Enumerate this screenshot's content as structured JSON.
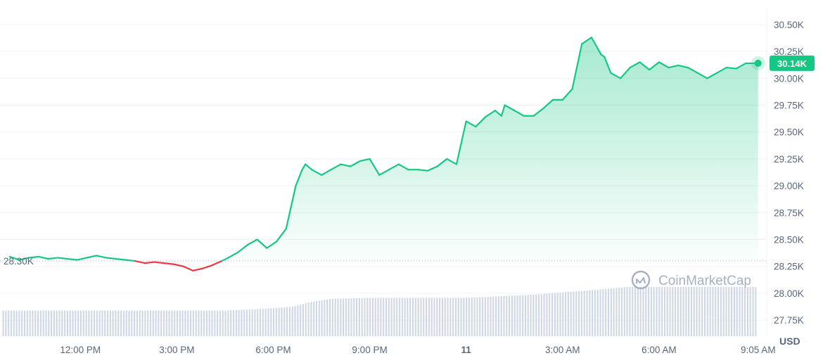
{
  "chart_data": {
    "type": "area",
    "currency_unit": "USD",
    "reference_price_label": "28.30K",
    "reference_price": 28300,
    "current_price_label": "30.14K",
    "current_price": 30140,
    "watermark": "CoinMarketCap",
    "ylim": [
      27600,
      30650
    ],
    "y_ticks": [
      {
        "value": 27750,
        "label": "27.75K"
      },
      {
        "value": 28000,
        "label": "28.00K"
      },
      {
        "value": 28250,
        "label": "28.25K"
      },
      {
        "value": 28500,
        "label": "28.50K"
      },
      {
        "value": 28750,
        "label": "28.75K"
      },
      {
        "value": 29000,
        "label": "29.00K"
      },
      {
        "value": 29250,
        "label": "29.25K"
      },
      {
        "value": 29500,
        "label": "29.50K"
      },
      {
        "value": 29750,
        "label": "29.75K"
      },
      {
        "value": 30000,
        "label": "30.00K"
      },
      {
        "value": 30250,
        "label": "30.25K"
      },
      {
        "value": 30500,
        "label": "30.50K"
      }
    ],
    "xlim": [
      9.5,
      33.35
    ],
    "x_ticks": [
      {
        "hour": 12,
        "label": "12:00 PM",
        "bold": false
      },
      {
        "hour": 15,
        "label": "3:00 PM",
        "bold": false
      },
      {
        "hour": 18,
        "label": "6:00 PM",
        "bold": false
      },
      {
        "hour": 21,
        "label": "9:00 PM",
        "bold": false
      },
      {
        "hour": 24,
        "label": "11",
        "bold": true
      },
      {
        "hour": 27,
        "label": "3:00 AM",
        "bold": false
      },
      {
        "hour": 30,
        "label": "6:00 AM",
        "bold": false
      },
      {
        "hour": 33.083,
        "label": "9:05 AM",
        "bold": false
      }
    ],
    "colors": {
      "up": "#16c784",
      "down": "#ea3943",
      "volume": "#cfd6e4"
    },
    "price": {
      "hours": [
        9.8,
        10.1,
        10.4,
        10.7,
        11.0,
        11.3,
        11.6,
        11.9,
        12.2,
        12.5,
        12.8,
        13.1,
        13.4,
        13.7,
        14.0,
        14.3,
        14.6,
        14.9,
        15.2,
        15.5,
        15.8,
        16.1,
        16.4,
        16.6,
        16.9,
        17.2,
        17.5,
        17.8,
        18.1,
        18.4,
        18.7,
        18.9,
        19.0,
        19.2,
        19.5,
        19.8,
        20.1,
        20.4,
        20.7,
        21.0,
        21.3,
        21.6,
        21.9,
        22.2,
        22.5,
        22.8,
        23.1,
        23.4,
        23.7,
        24.0,
        24.3,
        24.6,
        24.9,
        25.1,
        25.2,
        25.5,
        25.8,
        26.1,
        26.4,
        26.7,
        27.0,
        27.3,
        27.6,
        27.9,
        28.2,
        28.3,
        28.5,
        28.8,
        29.1,
        29.4,
        29.7,
        30.0,
        30.3,
        30.6,
        30.9,
        31.2,
        31.5,
        31.8,
        32.1,
        32.4,
        32.7,
        33.0,
        33.08
      ],
      "values": [
        28340,
        28310,
        28330,
        28340,
        28320,
        28330,
        28320,
        28310,
        28330,
        28350,
        28330,
        28320,
        28310,
        28300,
        28280,
        28290,
        28280,
        28270,
        28250,
        28210,
        28230,
        28260,
        28300,
        28330,
        28380,
        28450,
        28500,
        28420,
        28480,
        28600,
        29000,
        29150,
        29200,
        29150,
        29100,
        29150,
        29200,
        29180,
        29230,
        29250,
        29100,
        29150,
        29200,
        29150,
        29150,
        29140,
        29180,
        29250,
        29200,
        29600,
        29550,
        29640,
        29700,
        29650,
        29750,
        29700,
        29650,
        29650,
        29720,
        29800,
        29800,
        29900,
        30320,
        30380,
        30220,
        30200,
        30050,
        30000,
        30100,
        30150,
        30080,
        30150,
        30100,
        30120,
        30100,
        30050,
        30000,
        30050,
        30100,
        30090,
        30140,
        30140,
        30140
      ]
    },
    "volume": {
      "start_hour": 9.6,
      "end_hour": 33.08,
      "step_hours": 0.0833,
      "relative_levels": [
        {
          "hour": 9.6,
          "level": 0.52
        },
        {
          "hour": 16.5,
          "level": 0.52
        },
        {
          "hour": 17.8,
          "level": 0.56
        },
        {
          "hour": 18.6,
          "level": 0.6
        },
        {
          "hour": 19.2,
          "level": 0.7
        },
        {
          "hour": 19.8,
          "level": 0.76
        },
        {
          "hour": 21.0,
          "level": 0.78
        },
        {
          "hour": 24.0,
          "level": 0.78
        },
        {
          "hour": 26.0,
          "level": 0.84
        },
        {
          "hour": 28.0,
          "level": 0.94
        },
        {
          "hour": 29.0,
          "level": 1.0
        },
        {
          "hour": 33.08,
          "level": 1.0
        }
      ]
    }
  }
}
